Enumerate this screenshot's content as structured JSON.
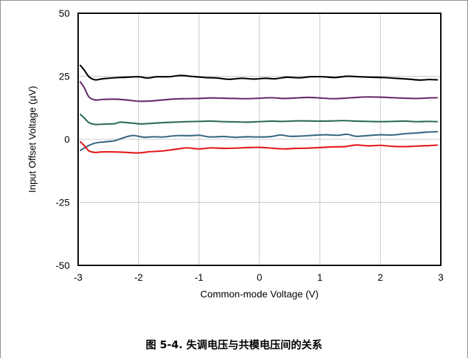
{
  "caption": "图 5-4. 失调电压与共模电压间的关系",
  "chart_data": {
    "type": "line",
    "xlabel": "Common-mode Voltage (V)",
    "ylabel": "Input Offset Voltage (µV)",
    "xlim": [
      -3,
      3
    ],
    "ylim": [
      -50,
      50
    ],
    "x_ticks": [
      "-3",
      "-2",
      "-1",
      "0",
      "1",
      "2",
      "3"
    ],
    "y_ticks": [
      "50",
      "25",
      "0",
      "-25",
      "-50"
    ],
    "x_tick_values": [
      -3,
      -2,
      -1,
      0,
      1,
      2,
      3
    ],
    "y_tick_values": [
      50,
      25,
      0,
      -25,
      -50
    ],
    "grid": true,
    "series": [
      {
        "color": "#000000",
        "points": [
          [
            -2.97,
            29.5
          ],
          [
            -2.9,
            27.5
          ],
          [
            -2.82,
            24.8
          ],
          [
            -2.72,
            23.6
          ],
          [
            -2.6,
            24.0
          ],
          [
            -2.4,
            24.4
          ],
          [
            -2.2,
            24.6
          ],
          [
            -2.0,
            24.8
          ],
          [
            -1.85,
            24.3
          ],
          [
            -1.7,
            24.8
          ],
          [
            -1.5,
            24.8
          ],
          [
            -1.3,
            25.3
          ],
          [
            -1.1,
            24.9
          ],
          [
            -0.9,
            24.5
          ],
          [
            -0.7,
            24.3
          ],
          [
            -0.5,
            23.8
          ],
          [
            -0.3,
            24.2
          ],
          [
            -0.1,
            23.9
          ],
          [
            0.1,
            24.2
          ],
          [
            0.25,
            24.0
          ],
          [
            0.45,
            24.6
          ],
          [
            0.65,
            24.4
          ],
          [
            0.85,
            24.8
          ],
          [
            1.05,
            24.8
          ],
          [
            1.25,
            24.5
          ],
          [
            1.45,
            25.0
          ],
          [
            1.65,
            24.8
          ],
          [
            1.85,
            24.6
          ],
          [
            2.05,
            24.5
          ],
          [
            2.25,
            24.2
          ],
          [
            2.45,
            23.9
          ],
          [
            2.65,
            23.5
          ],
          [
            2.8,
            23.7
          ],
          [
            2.95,
            23.6
          ]
        ]
      },
      {
        "color": "#6b2d6b",
        "points": [
          [
            -2.97,
            23.0
          ],
          [
            -2.9,
            20.5
          ],
          [
            -2.82,
            16.8
          ],
          [
            -2.72,
            15.6
          ],
          [
            -2.6,
            15.8
          ],
          [
            -2.4,
            15.9
          ],
          [
            -2.2,
            15.6
          ],
          [
            -2.0,
            15.1
          ],
          [
            -1.8,
            15.2
          ],
          [
            -1.6,
            15.6
          ],
          [
            -1.4,
            16.0
          ],
          [
            -1.2,
            16.1
          ],
          [
            -1.0,
            16.2
          ],
          [
            -0.8,
            16.4
          ],
          [
            -0.6,
            16.3
          ],
          [
            -0.4,
            16.2
          ],
          [
            -0.2,
            16.1
          ],
          [
            0.0,
            16.3
          ],
          [
            0.2,
            16.5
          ],
          [
            0.4,
            16.2
          ],
          [
            0.6,
            16.4
          ],
          [
            0.8,
            16.6
          ],
          [
            1.0,
            16.4
          ],
          [
            1.2,
            16.1
          ],
          [
            1.4,
            16.3
          ],
          [
            1.6,
            16.6
          ],
          [
            1.8,
            16.8
          ],
          [
            2.0,
            16.7
          ],
          [
            2.2,
            16.5
          ],
          [
            2.4,
            16.3
          ],
          [
            2.6,
            16.2
          ],
          [
            2.8,
            16.4
          ],
          [
            2.95,
            16.5
          ]
        ]
      },
      {
        "color": "#2e6b55",
        "points": [
          [
            -2.97,
            10.0
          ],
          [
            -2.9,
            8.5
          ],
          [
            -2.82,
            6.6
          ],
          [
            -2.72,
            5.9
          ],
          [
            -2.6,
            6.0
          ],
          [
            -2.4,
            6.2
          ],
          [
            -2.3,
            6.8
          ],
          [
            -2.1,
            6.4
          ],
          [
            -1.95,
            6.1
          ],
          [
            -1.8,
            6.3
          ],
          [
            -1.6,
            6.6
          ],
          [
            -1.4,
            6.8
          ],
          [
            -1.2,
            7.0
          ],
          [
            -1.0,
            7.1
          ],
          [
            -0.8,
            7.2
          ],
          [
            -0.6,
            7.0
          ],
          [
            -0.4,
            6.9
          ],
          [
            -0.2,
            6.8
          ],
          [
            0.0,
            7.0
          ],
          [
            0.2,
            7.2
          ],
          [
            0.4,
            7.1
          ],
          [
            0.6,
            7.3
          ],
          [
            0.8,
            7.3
          ],
          [
            1.0,
            7.2
          ],
          [
            1.2,
            7.3
          ],
          [
            1.4,
            7.4
          ],
          [
            1.6,
            7.2
          ],
          [
            1.8,
            7.1
          ],
          [
            2.0,
            7.0
          ],
          [
            2.2,
            7.1
          ],
          [
            2.4,
            7.2
          ],
          [
            2.6,
            7.0
          ],
          [
            2.8,
            7.1
          ],
          [
            2.95,
            7.0
          ]
        ]
      },
      {
        "color": "#3a6a85",
        "points": [
          [
            -2.97,
            -4.5
          ],
          [
            -2.9,
            -3.5
          ],
          [
            -2.8,
            -2.2
          ],
          [
            -2.7,
            -1.4
          ],
          [
            -2.55,
            -1.0
          ],
          [
            -2.4,
            -0.6
          ],
          [
            -2.3,
            0.2
          ],
          [
            -2.2,
            1.0
          ],
          [
            -2.1,
            1.5
          ],
          [
            -2.0,
            1.2
          ],
          [
            -1.9,
            0.8
          ],
          [
            -1.75,
            1.0
          ],
          [
            -1.6,
            0.9
          ],
          [
            -1.45,
            1.3
          ],
          [
            -1.3,
            1.5
          ],
          [
            -1.15,
            1.4
          ],
          [
            -1.0,
            1.6
          ],
          [
            -0.9,
            1.2
          ],
          [
            -0.8,
            0.9
          ],
          [
            -0.6,
            1.1
          ],
          [
            -0.4,
            0.8
          ],
          [
            -0.2,
            1.0
          ],
          [
            0.0,
            0.9
          ],
          [
            0.2,
            1.1
          ],
          [
            0.35,
            1.7
          ],
          [
            0.5,
            1.2
          ],
          [
            0.7,
            1.3
          ],
          [
            0.9,
            1.6
          ],
          [
            1.1,
            1.8
          ],
          [
            1.3,
            1.6
          ],
          [
            1.45,
            2.0
          ],
          [
            1.6,
            1.2
          ],
          [
            1.8,
            1.5
          ],
          [
            2.0,
            1.8
          ],
          [
            2.2,
            1.7
          ],
          [
            2.4,
            2.2
          ],
          [
            2.6,
            2.5
          ],
          [
            2.8,
            2.9
          ],
          [
            2.95,
            3.0
          ]
        ]
      },
      {
        "color": "#e31a1c",
        "points": [
          [
            -2.97,
            -0.8
          ],
          [
            -2.9,
            -2.5
          ],
          [
            -2.82,
            -4.6
          ],
          [
            -2.72,
            -5.2
          ],
          [
            -2.6,
            -5.0
          ],
          [
            -2.4,
            -5.0
          ],
          [
            -2.2,
            -5.2
          ],
          [
            -2.0,
            -5.4
          ],
          [
            -1.8,
            -4.9
          ],
          [
            -1.6,
            -4.6
          ],
          [
            -1.4,
            -4.0
          ],
          [
            -1.2,
            -3.4
          ],
          [
            -1.0,
            -3.8
          ],
          [
            -0.8,
            -3.4
          ],
          [
            -0.6,
            -3.6
          ],
          [
            -0.4,
            -3.5
          ],
          [
            -0.2,
            -3.3
          ],
          [
            0.0,
            -3.2
          ],
          [
            0.2,
            -3.5
          ],
          [
            0.4,
            -3.8
          ],
          [
            0.6,
            -3.6
          ],
          [
            0.8,
            -3.5
          ],
          [
            1.0,
            -3.3
          ],
          [
            1.2,
            -3.0
          ],
          [
            1.4,
            -2.9
          ],
          [
            1.6,
            -2.3
          ],
          [
            1.8,
            -2.6
          ],
          [
            2.0,
            -2.4
          ],
          [
            2.2,
            -2.8
          ],
          [
            2.4,
            -2.9
          ],
          [
            2.6,
            -2.7
          ],
          [
            2.8,
            -2.5
          ],
          [
            2.95,
            -2.3
          ]
        ]
      }
    ]
  }
}
